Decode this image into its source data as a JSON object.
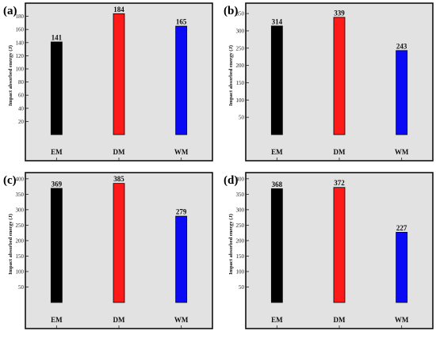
{
  "colors": {
    "background": "#e2e2e2",
    "frame": "#111111",
    "series": [
      "#000000",
      "#ff1a1a",
      "#0a0af5"
    ]
  },
  "chart_data": [
    {
      "type": "bar",
      "panel": "(a)",
      "categories": [
        "EM",
        "DM",
        "WM"
      ],
      "values": [
        141,
        184,
        165
      ],
      "data_labels": [
        "141",
        "184",
        "165"
      ],
      "ylabel": "Impact absorbed energy (J)",
      "xlabel": "",
      "ylim": [
        0,
        200
      ],
      "yticks": [
        20,
        40,
        60,
        80,
        100,
        120,
        140,
        160,
        180
      ],
      "grid": false
    },
    {
      "type": "bar",
      "panel": "(b)",
      "categories": [
        "EM",
        "DM",
        "WM"
      ],
      "values": [
        314,
        339,
        243
      ],
      "data_labels": [
        "314",
        "339",
        "243"
      ],
      "ylabel": "Impact absorbed energy (J)",
      "xlabel": "",
      "ylim": [
        0,
        380
      ],
      "yticks": [
        50,
        100,
        150,
        200,
        250,
        300,
        350
      ],
      "grid": false
    },
    {
      "type": "bar",
      "panel": "(c)",
      "categories": [
        "EM",
        "DM",
        "WM"
      ],
      "values": [
        369,
        385,
        279
      ],
      "data_labels": [
        "369",
        "385",
        "279"
      ],
      "ylabel": "Impact absorbed energy (J)",
      "xlabel": "",
      "ylim": [
        0,
        420
      ],
      "yticks": [
        50,
        100,
        150,
        200,
        250,
        300,
        350,
        400
      ],
      "grid": false
    },
    {
      "type": "bar",
      "panel": "(d)",
      "categories": [
        "EM",
        "DM",
        "WM"
      ],
      "values": [
        368,
        372,
        227
      ],
      "data_labels": [
        "368",
        "372",
        "227"
      ],
      "ylabel": "Impact absorbed energy (J)",
      "xlabel": "",
      "ylim": [
        0,
        420
      ],
      "yticks": [
        50,
        100,
        150,
        200,
        250,
        300,
        350,
        400
      ],
      "grid": false
    }
  ]
}
